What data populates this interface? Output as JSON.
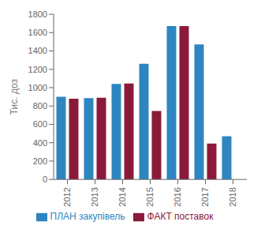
{
  "chart_data": {
    "type": "bar",
    "categories": [
      "2012",
      "2013",
      "2014",
      "2015",
      "2016",
      "2017",
      "2018"
    ],
    "series": [
      {
        "name": "ПЛАН закупівель",
        "color": "#2e86c1",
        "values": [
          900,
          885,
          1040,
          1260,
          1670,
          1470,
          470
        ]
      },
      {
        "name": "ФАКТ поставок",
        "color": "#8b1a3a",
        "values": [
          880,
          890,
          1045,
          745,
          1670,
          390,
          0
        ]
      }
    ],
    "ylabel": "Тис. доз",
    "ylim": [
      0,
      1800
    ],
    "yticks": [
      0,
      200,
      400,
      600,
      800,
      1000,
      1200,
      1400,
      1600,
      1800
    ],
    "grid": false,
    "legend": "bottom"
  }
}
